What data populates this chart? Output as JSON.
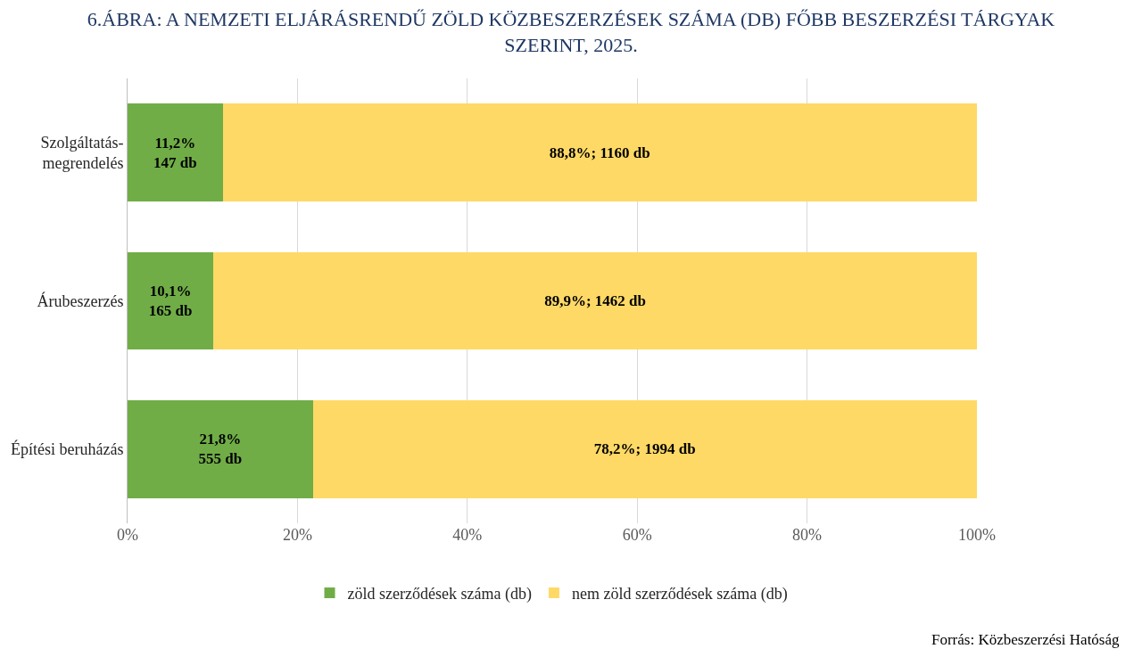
{
  "chart_data": {
    "type": "bar",
    "orientation": "horizontal",
    "stacked": true,
    "title": "6.ÁBRA: A NEMZETI ELJÁRÁSRENDŰ ZÖLD KÖZBESZERZÉSEK SZÁMA (DB) FŐBB BESZERZÉSI TÁRGYAK SZERINT, 2025.",
    "categories": [
      "Szolgáltatás-megrendelés",
      "Árubeszerzés",
      "Építési beruházás"
    ],
    "series": [
      {
        "name": "zöld szerződések száma (db)",
        "color": "#70ad47",
        "values": [
          11.2,
          10.1,
          21.8
        ],
        "value_labels": [
          "11,2%\n147 db",
          "10,1%\n165 db",
          "21,8%\n555 db"
        ]
      },
      {
        "name": "nem zöld szerződések száma (db)",
        "color": "#ffd966",
        "values": [
          88.8,
          89.9,
          78.2
        ],
        "value_labels": [
          "88,8%; 1160 db",
          "89,9%; 1462 db",
          "78,2%; 1994 db"
        ]
      }
    ],
    "xlim": [
      0,
      100
    ],
    "xticks": [
      {
        "value": 0,
        "label": "0%"
      },
      {
        "value": 20,
        "label": "20%"
      },
      {
        "value": 40,
        "label": "40%"
      },
      {
        "value": 60,
        "label": "60%"
      },
      {
        "value": 80,
        "label": "80%"
      },
      {
        "value": 100,
        "label": "100%"
      }
    ],
    "grid": "x",
    "legend": "bottom",
    "annotations": [
      "Forrás: Közbeszerzési Hatóság"
    ]
  }
}
